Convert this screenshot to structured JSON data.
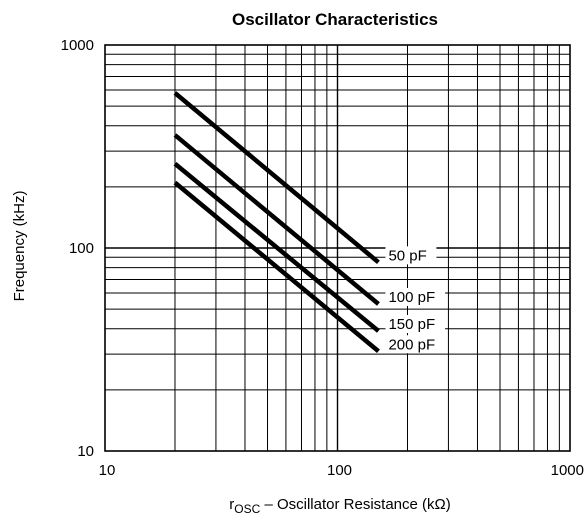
{
  "chart_data": {
    "type": "line",
    "title": "Oscillator Characteristics",
    "xlabel": {
      "prefix": "r",
      "subscript": "OSC",
      "suffix": " – Oscillator Resistance (kΩ)"
    },
    "ylabel": "Frequency (kHz)",
    "xscale": "log",
    "yscale": "log",
    "xlim": [
      10,
      1000
    ],
    "ylim": [
      10,
      1000
    ],
    "grid": true,
    "legend": "none",
    "xticks": [
      {
        "value": 10,
        "label": "10"
      },
      {
        "value": 100,
        "label": "100"
      },
      {
        "value": 1000,
        "label": "1000"
      }
    ],
    "yticks": [
      {
        "value": 10,
        "label": "10"
      },
      {
        "value": 100,
        "label": "100"
      },
      {
        "value": 1000,
        "label": "1000"
      }
    ],
    "series": [
      {
        "name": "50 pF",
        "x": [
          20,
          150
        ],
        "y": [
          580,
          85
        ]
      },
      {
        "name": "100 pF",
        "x": [
          20,
          150
        ],
        "y": [
          360,
          53
        ]
      },
      {
        "name": "150 pF",
        "x": [
          20,
          150
        ],
        "y": [
          260,
          39
        ]
      },
      {
        "name": "200 pF",
        "x": [
          20,
          150
        ],
        "y": [
          210,
          31
        ]
      }
    ],
    "colors": {
      "line": "#000000",
      "grid": "#000000",
      "background": "#ffffff"
    }
  }
}
